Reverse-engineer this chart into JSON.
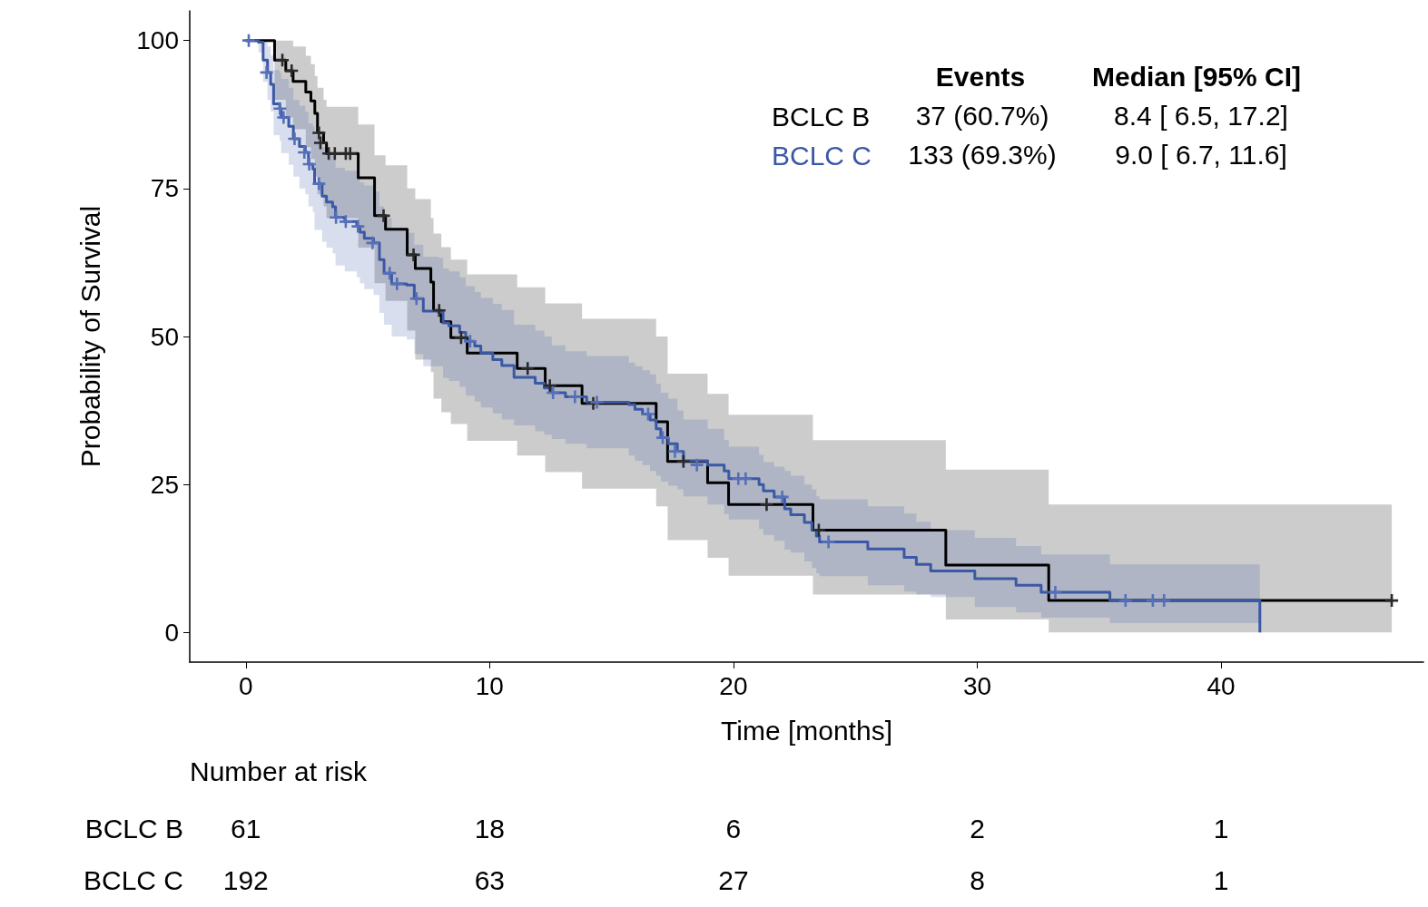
{
  "chart_data": {
    "type": "step",
    "xlabel": "Time [months]",
    "ylabel": "Probability of Survival",
    "xlim": [
      -2.3,
      48.3
    ],
    "ylim": [
      -5,
      105
    ],
    "xticks": [
      0,
      10,
      20,
      30,
      40
    ],
    "yticks": [
      0,
      25,
      50,
      75,
      100
    ],
    "grid": false,
    "legend": "top right",
    "line_style": "solid",
    "annotations": [
      "Events",
      "Median [95% CI]",
      "37 (60.7%)",
      "8.4 [ 6.5, 17.2]",
      "133 (69.3%)",
      "9.0 [ 6.7, 11.6]",
      "Number at risk",
      "BCLC B",
      "61",
      "18",
      "6",
      "2",
      "1",
      "BCLC C",
      "192",
      "63",
      "27",
      "8",
      "1"
    ],
    "series": [
      {
        "name": "BCLC B",
        "color": "#000000",
        "x": [
          0,
          1.18,
          1.64,
          1.94,
          2.46,
          2.67,
          2.83,
          2.94,
          3.19,
          3.31,
          4.61,
          5.28,
          5.73,
          6.62,
          6.95,
          7.59,
          7.7,
          8.02,
          8.41,
          9.08,
          11.13,
          12.28,
          13.79,
          16.83,
          17.3,
          18.94,
          19.8,
          23.26,
          28.71,
          32.93,
          47.0
        ],
        "values": [
          100,
          96.7,
          94.9,
          93.1,
          91.3,
          89.8,
          87.7,
          84.4,
          82.7,
          80.9,
          76.8,
          70.4,
          68.1,
          63.8,
          61.5,
          59.2,
          54.4,
          52.5,
          49.8,
          47.2,
          44.6,
          41.7,
          38.7,
          35.6,
          28.9,
          25.3,
          21.6,
          17.3,
          11.4,
          5.4,
          5.4
        ],
        "lower": [
          100,
          90,
          87,
          85,
          82,
          80,
          77,
          74,
          72,
          70,
          65,
          59,
          56,
          51,
          46.1,
          44,
          39.5,
          37.2,
          35.2,
          32.4,
          29.9,
          27.1,
          24.3,
          21.3,
          15.6,
          12.6,
          9.6,
          6.4,
          2.2,
          0,
          0
        ],
        "upper": [
          100,
          100,
          100,
          99,
          97.4,
          96,
          94,
          92,
          90,
          88.8,
          85.8,
          80.6,
          78.9,
          75,
          73.2,
          70,
          67.4,
          65.1,
          63,
          60.5,
          58.3,
          55.6,
          53,
          50,
          43.7,
          40.3,
          36.8,
          32.5,
          27.5,
          21.6,
          21.6
        ]
      },
      {
        "name": "BCLC C",
        "color": "#3b58a5",
        "x": [
          0,
          0.52,
          0.71,
          0.89,
          1.02,
          1.14,
          1.39,
          1.45,
          1.76,
          1.95,
          2.2,
          2.44,
          2.57,
          2.75,
          2.82,
          3.13,
          3.31,
          3.56,
          3.68,
          4.06,
          4.55,
          4.68,
          4.86,
          5.24,
          5.48,
          5.67,
          5.98,
          6.6,
          6.91,
          7.28,
          7.9,
          8.09,
          8.33,
          8.77,
          9.02,
          9.39,
          9.64,
          10.13,
          10.5,
          11.0,
          11.87,
          12.24,
          12.55,
          13.11,
          13.98,
          15.71,
          15.96,
          16.27,
          16.58,
          16.83,
          17.02,
          17.33,
          17.7,
          17.95,
          18.94,
          19.62,
          19.81,
          21.05,
          21.23,
          21.67,
          22.1,
          22.35,
          22.91,
          23.22,
          23.4,
          23.53,
          25.51,
          27.0,
          27.5,
          28.09,
          29.9,
          31.59,
          32.62,
          35.44,
          41.59
        ],
        "values": [
          100,
          99.7,
          96.7,
          94.6,
          92.6,
          89.3,
          88.5,
          87.0,
          85.5,
          83.4,
          82.1,
          81.1,
          79.1,
          78.3,
          75.8,
          73.7,
          72.7,
          71.9,
          70.1,
          69.4,
          68.6,
          67.6,
          66.6,
          65.8,
          63.0,
          60.7,
          58.9,
          58.7,
          56.4,
          54.3,
          54.1,
          52.3,
          51.8,
          50.7,
          49.2,
          48.4,
          47.2,
          46.1,
          45.1,
          43.1,
          42.1,
          41.3,
          40.5,
          39.8,
          38.9,
          38.5,
          37.7,
          36.9,
          35.9,
          34.4,
          32.9,
          31.9,
          30.6,
          29.0,
          28.3,
          27.3,
          26.0,
          25.0,
          23.9,
          22.9,
          20.9,
          19.9,
          18.6,
          17.3,
          16.3,
          15.3,
          14.1,
          12.7,
          11.5,
          10.4,
          9.1,
          8.0,
          6.8,
          5.4,
          0
        ],
        "lower": [
          100,
          98,
          93,
          90,
          88,
          84,
          83,
          81,
          79,
          77,
          75,
          74,
          72,
          71,
          68,
          66,
          65,
          64,
          62,
          61,
          60,
          59,
          58,
          57,
          54,
          52,
          50,
          49.5,
          47,
          45,
          45,
          43,
          42.5,
          41.5,
          40,
          39,
          38,
          37,
          36,
          35,
          34,
          33.4,
          32.7,
          31.9,
          31.1,
          29.9,
          29,
          28.3,
          27.3,
          26.5,
          25.5,
          24.8,
          24.2,
          23,
          21.6,
          20,
          19.1,
          17.5,
          16.5,
          15.5,
          14,
          13.5,
          12,
          10.9,
          10,
          9.5,
          8.0,
          6.9,
          6.4,
          6.0,
          4.3,
          3.4,
          2.5,
          1.6,
          1.6
        ],
        "upper": [
          100,
          100,
          100,
          99,
          97.5,
          95,
          94.5,
          93.5,
          92,
          90,
          89,
          88,
          86,
          85.5,
          84,
          82,
          81,
          80.5,
          78.5,
          78,
          77,
          76,
          75.5,
          74.5,
          72,
          70,
          68,
          67.5,
          65.5,
          63.5,
          63.3,
          61.5,
          61,
          60,
          58.5,
          57.5,
          56.5,
          55.5,
          54.5,
          52,
          51,
          50,
          48.5,
          47.5,
          46.7,
          45.6,
          45,
          44.3,
          43.6,
          42,
          40.5,
          39.5,
          37.5,
          36,
          34.4,
          32.5,
          31.4,
          30,
          28.8,
          28,
          27.3,
          26.5,
          25,
          24.2,
          23,
          22.5,
          21.3,
          20.1,
          18.7,
          17.3,
          16.0,
          14.6,
          13.2,
          11.5,
          11.5
        ]
      },
      {
        "type": "scatter",
        "marker": "cross",
        "color": "#2a2a2a",
        "x": [
          1.5,
          1.88,
          3.0,
          3.06,
          3.4,
          3.65,
          4.1,
          4.28,
          5.65,
          6.88,
          7.93,
          8.83,
          11.56,
          12.47,
          14.25,
          17.95,
          21.36,
          23.5,
          47.0
        ],
        "values": [
          96.7,
          94.9,
          84.4,
          82.7,
          80.9,
          80.9,
          80.9,
          80.9,
          70.4,
          63.8,
          54.4,
          49.8,
          44.6,
          41.7,
          38.7,
          28.9,
          21.6,
          17.3,
          5.4
        ]
      },
      {
        "type": "scatter",
        "marker": "cross",
        "color": "#5670b8",
        "x": [
          0.12,
          0.85,
          1.4,
          1.55,
          2.0,
          2.4,
          2.6,
          3.0,
          3.7,
          4.1,
          4.6,
          5.2,
          5.9,
          6.2,
          7.0,
          9.2,
          12.6,
          13.5,
          14.4,
          16.5,
          17.1,
          17.6,
          18.5,
          20.2,
          20.5,
          22.0,
          23.9,
          33.2,
          36.08,
          37.2,
          37.66
        ],
        "values": [
          100,
          94.6,
          88.5,
          87.0,
          83.4,
          81.1,
          79.1,
          75.8,
          70.1,
          69.4,
          68.6,
          65.8,
          60.7,
          58.9,
          56.4,
          49.2,
          40.5,
          39.8,
          38.9,
          36.9,
          32.9,
          30.6,
          28.3,
          26.0,
          26.0,
          22.9,
          15.3,
          6.8,
          5.4,
          5.4,
          5.4
        ]
      }
    ]
  }
}
